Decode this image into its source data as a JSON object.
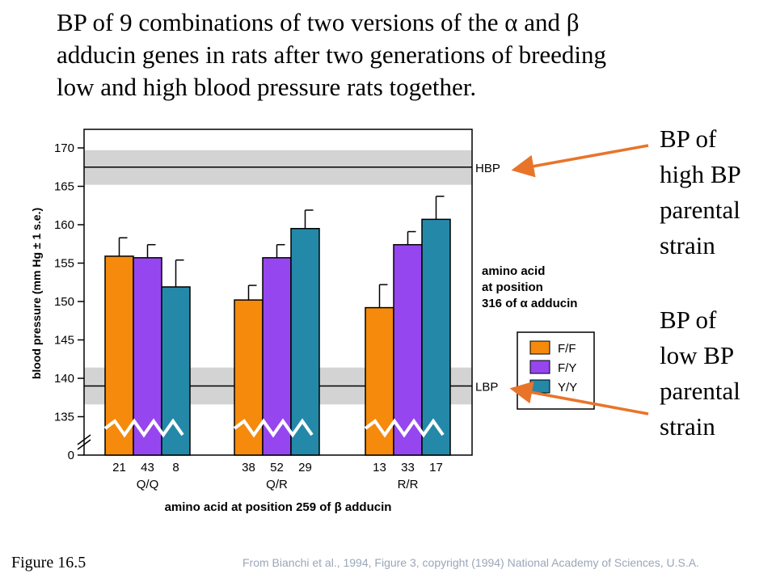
{
  "title_lines": [
    "BP of 9 combinations of two versions of the α and β",
    "adducin genes in rats after two generations of breeding",
    "low and high blood pressure rats together."
  ],
  "annotations": {
    "high": [
      "BP of",
      "high BP",
      "parental",
      "strain"
    ],
    "low": [
      "BP of",
      "low BP",
      "parental",
      "strain"
    ]
  },
  "figure_label": "Figure 16.5",
  "credit": "From Bianchi et al., 1994, Figure 3, copyright (1994) National Academy of Sciences, U.S.A.",
  "colors": {
    "F/F": "#f58a0c",
    "F/Y": "#9646ee",
    "Y/Y": "#2489a8",
    "band": "#d3d3d3",
    "arrow": "#e8742a",
    "axis": "#000000"
  },
  "chart_data": {
    "type": "bar",
    "ylabel": "blood pressure (mm Hg ± 1 s.e.)",
    "xlabel": "amino acid at position 259 of β adducin",
    "y_ticks": [
      170,
      165,
      160,
      155,
      150,
      145,
      140,
      135,
      0
    ],
    "ylim": [
      133,
      171
    ],
    "axis_break": true,
    "groups": [
      "Q/Q",
      "Q/R",
      "R/R"
    ],
    "series": [
      {
        "name": "F/F",
        "values": [
          155.9,
          150.2,
          149.2
        ],
        "errors": [
          2.4,
          1.9,
          3.0
        ],
        "n": [
          "21",
          "38",
          "13"
        ]
      },
      {
        "name": "F/Y",
        "values": [
          155.7,
          155.7,
          157.4
        ],
        "errors": [
          1.7,
          1.7,
          1.7
        ],
        "n": [
          "43",
          "52",
          "33"
        ]
      },
      {
        "name": "Y/Y",
        "values": [
          151.9,
          159.5,
          160.7
        ],
        "errors": [
          3.5,
          2.4,
          3.0
        ],
        "n": [
          "8",
          "29",
          "17"
        ]
      }
    ],
    "reference_lines": [
      {
        "label": "HBP",
        "value": 167.5,
        "band": [
          165.2,
          169.7
        ]
      },
      {
        "label": "LBP",
        "value": 139.0,
        "band": [
          136.6,
          141.4
        ]
      }
    ],
    "legend_title": [
      "amino acid",
      "at position",
      "316 of α adducin"
    ],
    "legend_entries": [
      "F/F",
      "F/Y",
      "Y/Y"
    ]
  }
}
